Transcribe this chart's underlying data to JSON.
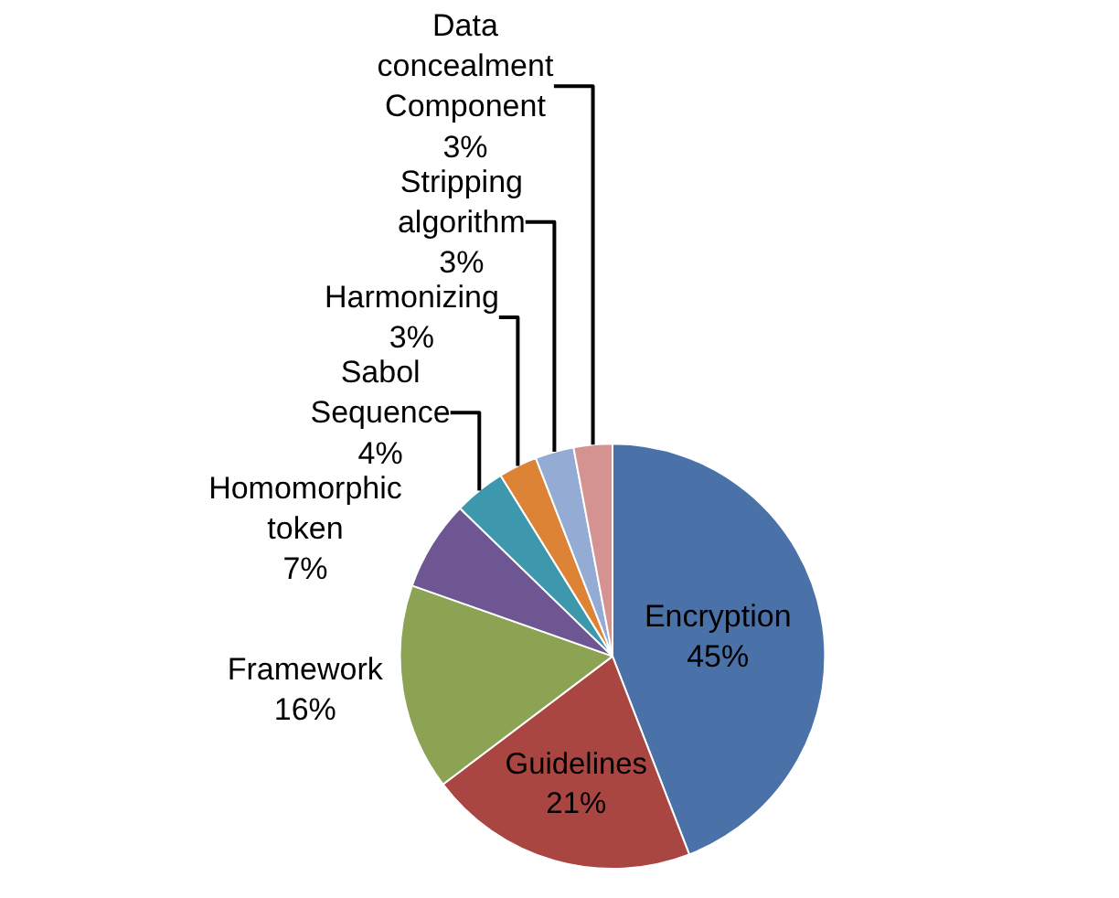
{
  "chart_data": {
    "type": "pie",
    "categories": [
      "Encryption",
      "Guidelines",
      "Framework",
      "Homomorphic token",
      "Sabol Sequence",
      "Harmonizing",
      "Stripping algorithm",
      "Data concealment Component"
    ],
    "values": [
      45,
      21,
      16,
      7,
      4,
      3,
      3,
      3
    ],
    "value_labels": [
      "45%",
      "21%",
      "16%",
      "7%",
      "4%",
      "3%",
      "3%",
      "3%"
    ],
    "colors": [
      "#4a72a8",
      "#a94642",
      "#8ba352",
      "#6e5693",
      "#3d97ad",
      "#dc8336",
      "#94abd3",
      "#d49391"
    ],
    "legend": false
  }
}
